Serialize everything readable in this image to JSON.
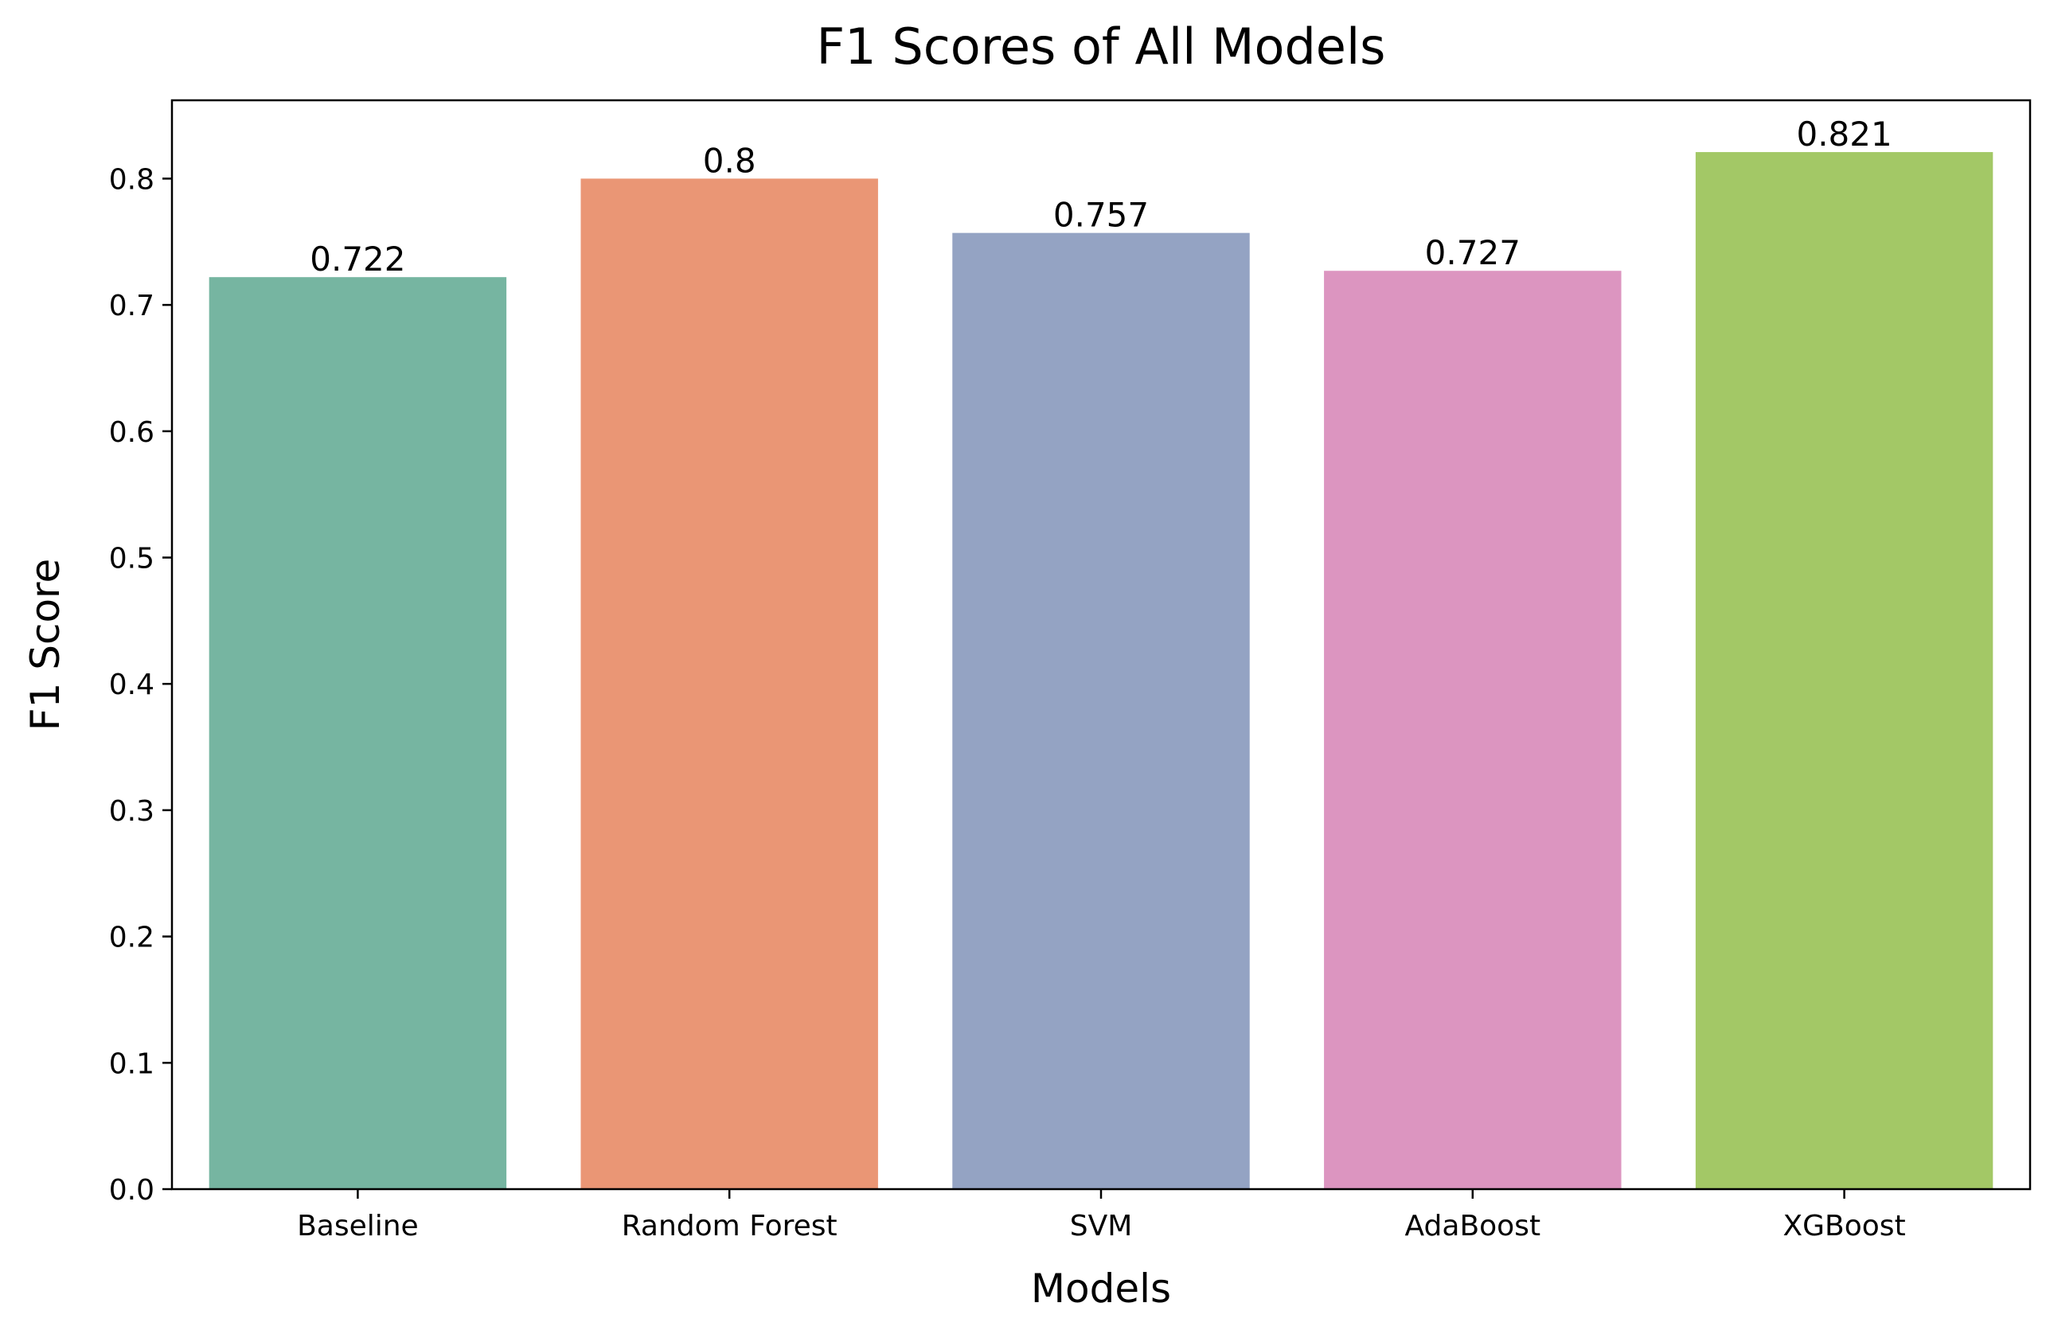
{
  "chart_data": {
    "type": "bar",
    "title": "F1 Scores of All Models",
    "xlabel": "Models",
    "ylabel": "F1 Score",
    "categories": [
      "Baseline",
      "Random Forest",
      "SVM",
      "AdaBoost",
      "XGBoost"
    ],
    "values": [
      0.722,
      0.8,
      0.757,
      0.727,
      0.821
    ],
    "data_labels": [
      "0.722",
      "0.8",
      "0.757",
      "0.727",
      "0.821"
    ],
    "colors": [
      "#76b5a1",
      "#ea9675",
      "#94a3c3",
      "#dc95c0",
      "#a3c866"
    ],
    "ylim": [
      0,
      0.862
    ],
    "yticks": [
      0.0,
      0.1,
      0.2,
      0.3,
      0.4,
      0.5,
      0.6,
      0.7,
      0.8
    ],
    "ytick_labels": [
      "0.0",
      "0.1",
      "0.2",
      "0.3",
      "0.4",
      "0.5",
      "0.6",
      "0.7",
      "0.8"
    ],
    "grid": false,
    "legend": "none"
  }
}
